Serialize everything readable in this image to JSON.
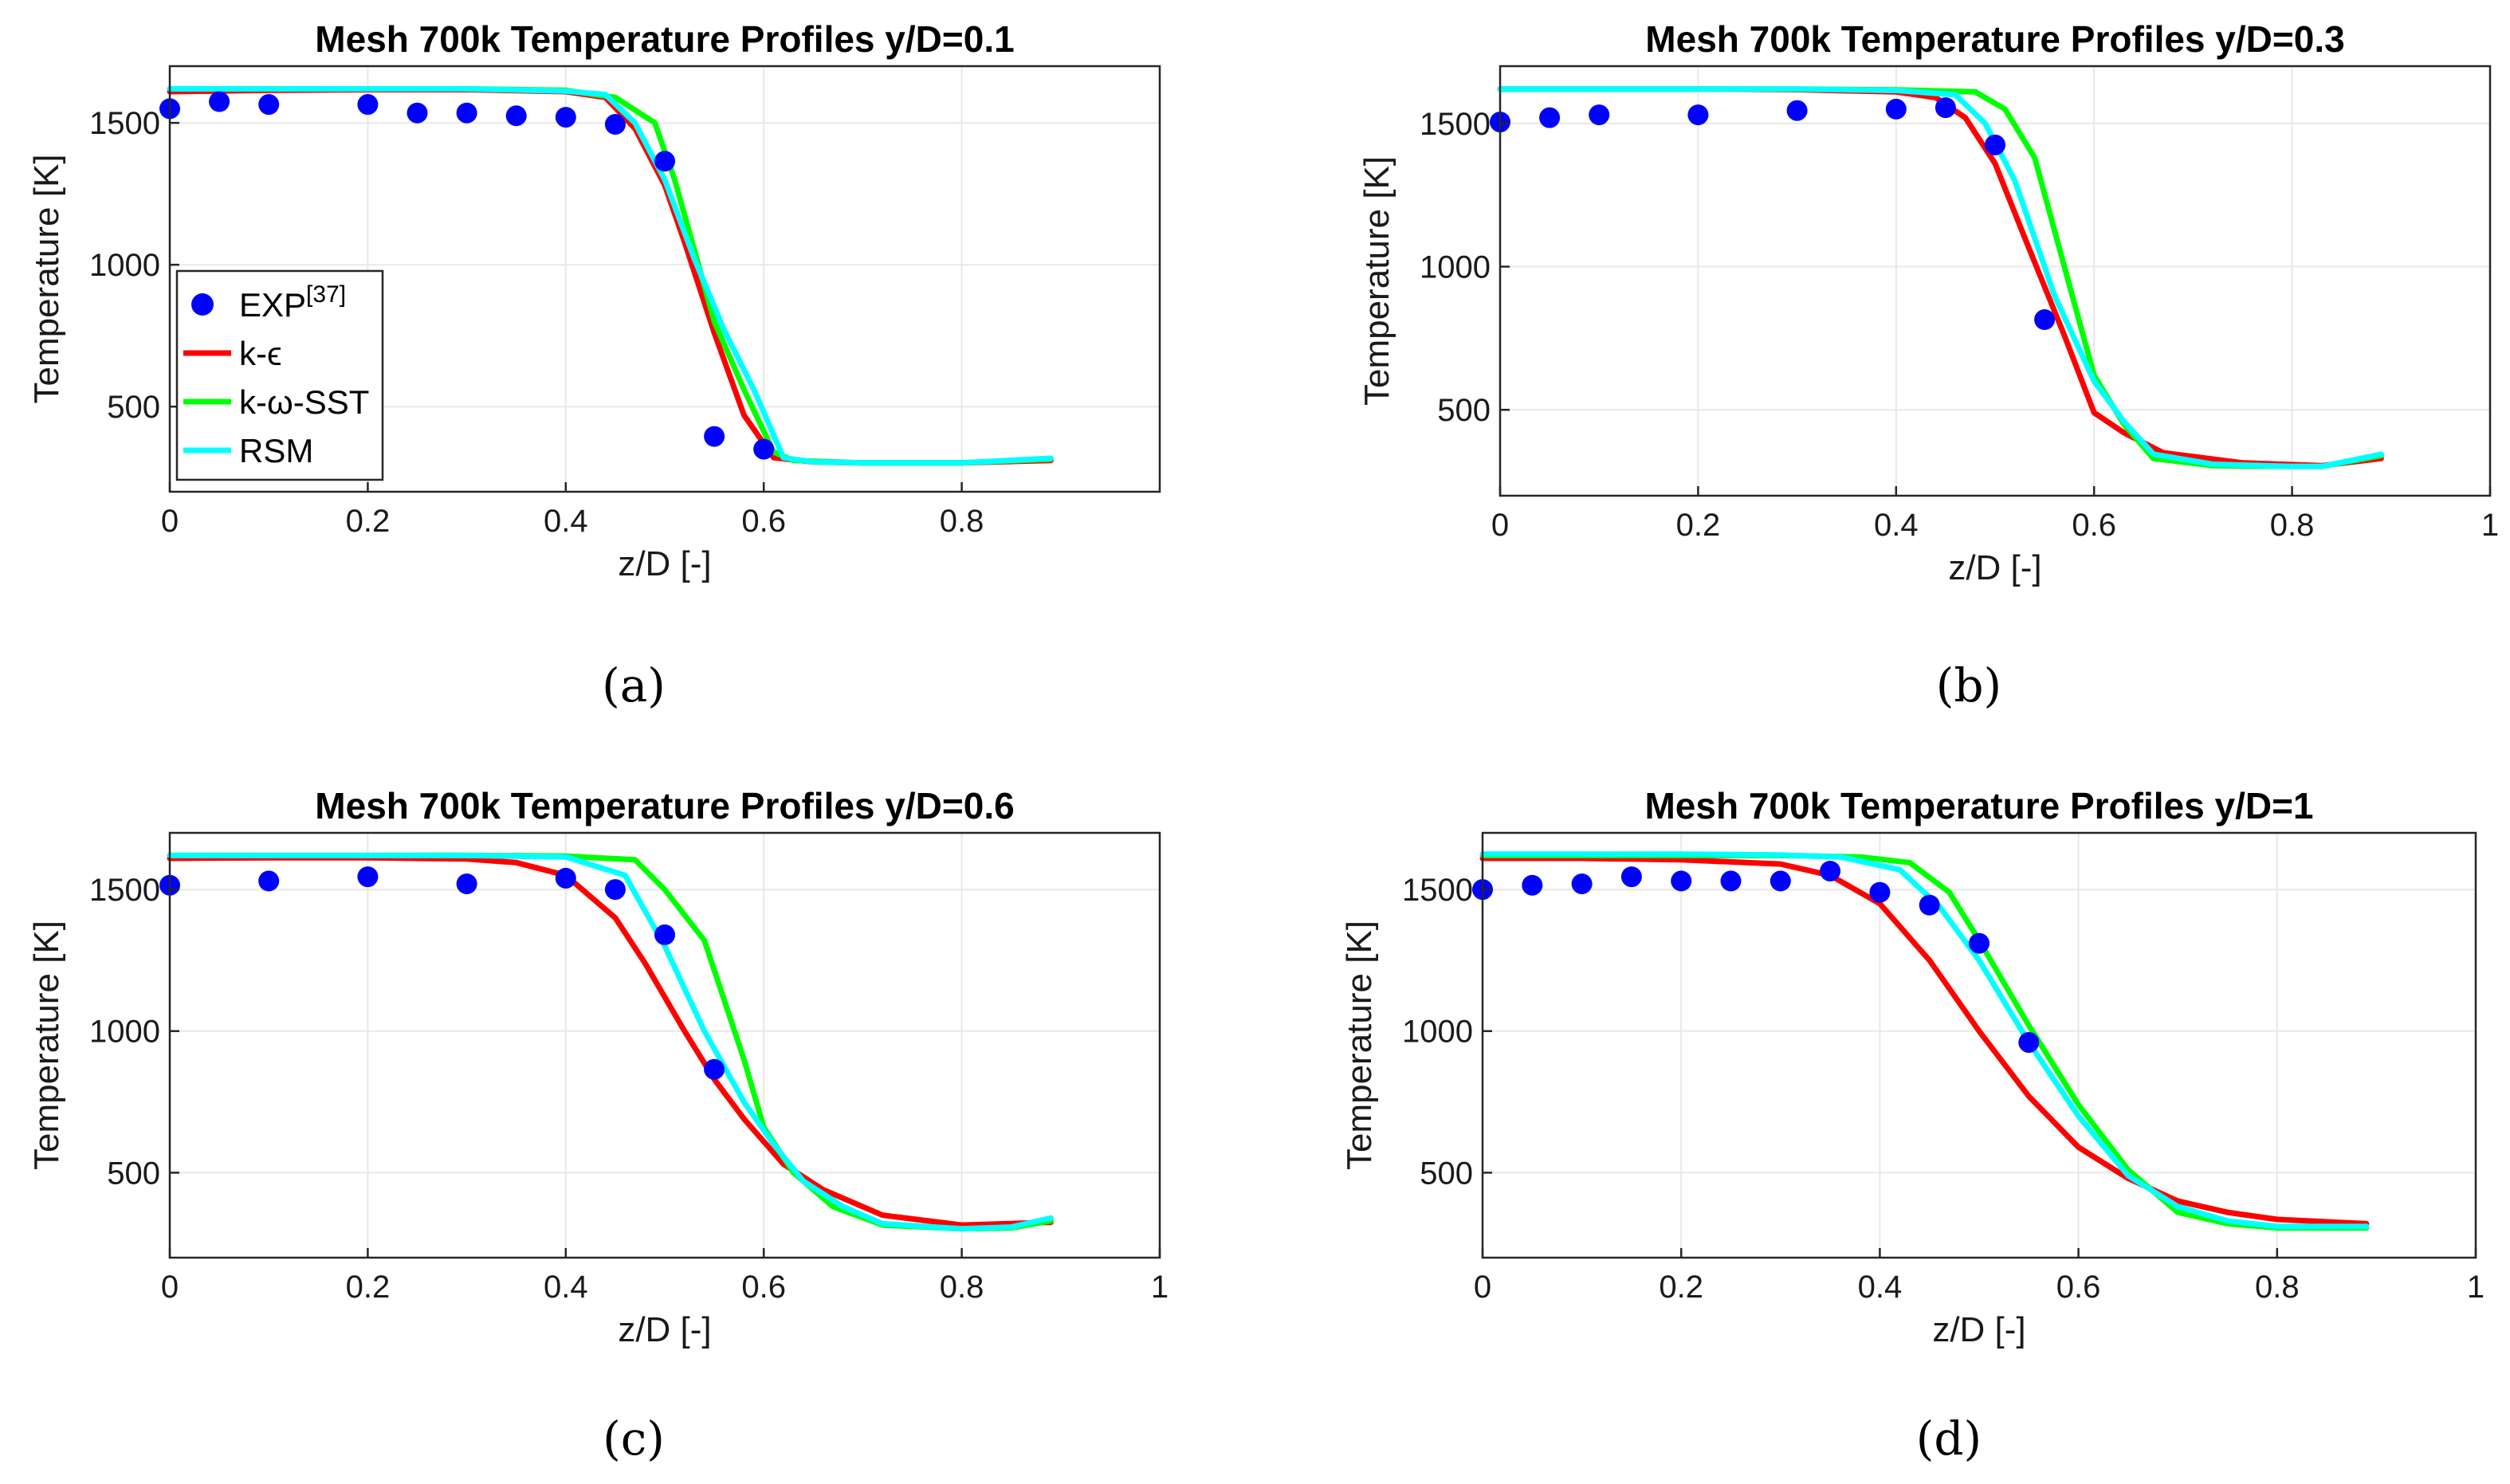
{
  "chart_data": [
    {
      "type": "line",
      "title": "Mesh 700k Temperature Profiles y/D=0.1",
      "caption": "(a)",
      "xlabel": "z/D [-]",
      "ylabel": "Temperature [K]",
      "xlim": [
        0,
        1
      ],
      "ylim": [
        200,
        1700
      ],
      "xticks": [
        0,
        0.2,
        0.4,
        0.6,
        0.8
      ],
      "xtick_labels": [
        "0",
        "0.2",
        "0.4",
        "0.6",
        "0.8"
      ],
      "yticks": [
        500,
        1000,
        1500
      ],
      "ytick_labels": [
        "500",
        "1000",
        "1500"
      ],
      "legend": {
        "placement": "center-left",
        "entries": [
          {
            "label": "EXP",
            "superscript": "[37]",
            "type": "marker",
            "color": "#0000ff"
          },
          {
            "label": "k-ϵ",
            "type": "line",
            "color": "#ff0000"
          },
          {
            "label": "k-ω-SST",
            "type": "line",
            "color": "#00ff00"
          },
          {
            "label": "RSM",
            "type": "line",
            "color": "#00ffff"
          }
        ]
      },
      "scatter": {
        "name": "EXP",
        "color": "#0000ff",
        "x": [
          0,
          0.05,
          0.1,
          0.2,
          0.25,
          0.3,
          0.35,
          0.4,
          0.45,
          0.5,
          0.55,
          0.6
        ],
        "y": [
          1550,
          1575,
          1565,
          1565,
          1535,
          1535,
          1525,
          1520,
          1495,
          1365,
          395,
          350
        ]
      },
      "series": [
        {
          "name": "k-ϵ",
          "color": "#ff0000",
          "x": [
            0,
            0.1,
            0.2,
            0.3,
            0.4,
            0.44,
            0.47,
            0.5,
            0.52,
            0.55,
            0.58,
            0.61,
            0.65,
            0.7,
            0.8,
            0.89
          ],
          "y": [
            1610,
            1615,
            1617,
            1617,
            1610,
            1590,
            1480,
            1280,
            1080,
            760,
            470,
            320,
            305,
            302,
            302,
            310
          ]
        },
        {
          "name": "k-ω-SST",
          "color": "#00ff00",
          "x": [
            0,
            0.1,
            0.2,
            0.3,
            0.4,
            0.45,
            0.49,
            0.51,
            0.53,
            0.55,
            0.58,
            0.61,
            0.63,
            0.7,
            0.8,
            0.89
          ],
          "y": [
            1620,
            1620,
            1620,
            1620,
            1615,
            1590,
            1500,
            1300,
            1050,
            800,
            560,
            340,
            310,
            302,
            302,
            315
          ]
        },
        {
          "name": "RSM",
          "color": "#00ffff",
          "x": [
            0,
            0.1,
            0.2,
            0.3,
            0.4,
            0.44,
            0.47,
            0.5,
            0.53,
            0.56,
            0.59,
            0.62,
            0.65,
            0.7,
            0.8,
            0.89
          ],
          "y": [
            1620,
            1620,
            1620,
            1620,
            1612,
            1600,
            1500,
            1300,
            1020,
            770,
            560,
            320,
            305,
            302,
            302,
            318
          ]
        }
      ]
    },
    {
      "type": "line",
      "title": "Mesh 700k Temperature Profiles y/D=0.3",
      "caption": "(b)",
      "xlabel": "z/D [-]",
      "ylabel": "Temperature [K]",
      "xlim": [
        0,
        1
      ],
      "ylim": [
        200,
        1700
      ],
      "xticks": [
        0,
        0.2,
        0.4,
        0.6,
        0.8,
        1
      ],
      "xtick_labels": [
        "0",
        "0.2",
        "0.4",
        "0.6",
        "0.8",
        "1"
      ],
      "yticks": [
        500,
        1000,
        1500
      ],
      "ytick_labels": [
        "500",
        "1000",
        "1500"
      ],
      "scatter": {
        "name": "EXP",
        "color": "#0000ff",
        "x": [
          0,
          0.05,
          0.1,
          0.2,
          0.3,
          0.4,
          0.45,
          0.5,
          0.55
        ],
        "y": [
          1505,
          1520,
          1530,
          1530,
          1545,
          1550,
          1555,
          1425,
          815
        ]
      },
      "series": [
        {
          "name": "k-ϵ",
          "color": "#ff0000",
          "x": [
            0,
            0.1,
            0.2,
            0.3,
            0.4,
            0.44,
            0.47,
            0.5,
            0.53,
            0.57,
            0.6,
            0.63,
            0.67,
            0.75,
            0.83,
            0.89
          ],
          "y": [
            1620,
            1620,
            1620,
            1618,
            1610,
            1590,
            1520,
            1360,
            1100,
            760,
            490,
            420,
            350,
            315,
            305,
            330
          ]
        },
        {
          "name": "k-ω-SST",
          "color": "#00ff00",
          "x": [
            0,
            0.1,
            0.2,
            0.3,
            0.4,
            0.48,
            0.51,
            0.54,
            0.57,
            0.6,
            0.63,
            0.66,
            0.72,
            0.8,
            0.83,
            0.89
          ],
          "y": [
            1620,
            1620,
            1620,
            1620,
            1617,
            1610,
            1550,
            1380,
            1000,
            620,
            450,
            330,
            305,
            302,
            302,
            340
          ]
        },
        {
          "name": "RSM",
          "color": "#00ffff",
          "x": [
            0,
            0.1,
            0.2,
            0.3,
            0.4,
            0.46,
            0.49,
            0.52,
            0.56,
            0.6,
            0.63,
            0.66,
            0.72,
            0.8,
            0.83,
            0.89
          ],
          "y": [
            1620,
            1620,
            1620,
            1620,
            1615,
            1600,
            1500,
            1300,
            900,
            600,
            460,
            345,
            310,
            302,
            302,
            345
          ]
        }
      ]
    },
    {
      "type": "line",
      "title": "Mesh 700k Temperature Profiles y/D=0.6",
      "caption": "(c)",
      "xlabel": "z/D [-]",
      "ylabel": "Temperature [K]",
      "xlim": [
        0,
        1
      ],
      "ylim": [
        200,
        1700
      ],
      "xticks": [
        0,
        0.2,
        0.4,
        0.6,
        0.8,
        1
      ],
      "xtick_labels": [
        "0",
        "0.2",
        "0.4",
        "0.6",
        "0.8",
        "1"
      ],
      "yticks": [
        500,
        1000,
        1500
      ],
      "ytick_labels": [
        "500",
        "1000",
        "1500"
      ],
      "scatter": {
        "name": "EXP",
        "color": "#0000ff",
        "x": [
          0,
          0.1,
          0.2,
          0.3,
          0.4,
          0.45,
          0.5,
          0.55
        ],
        "y": [
          1515,
          1530,
          1545,
          1520,
          1540,
          1500,
          1340,
          865
        ]
      },
      "series": [
        {
          "name": "k-ϵ",
          "color": "#ff0000",
          "x": [
            0,
            0.1,
            0.2,
            0.3,
            0.35,
            0.4,
            0.45,
            0.48,
            0.52,
            0.55,
            0.58,
            0.62,
            0.66,
            0.72,
            0.8,
            0.89
          ],
          "y": [
            1610,
            1612,
            1612,
            1608,
            1595,
            1550,
            1400,
            1240,
            1000,
            830,
            690,
            530,
            440,
            350,
            315,
            325
          ]
        },
        {
          "name": "k-ω-SST",
          "color": "#00ff00",
          "x": [
            0,
            0.1,
            0.2,
            0.3,
            0.4,
            0.47,
            0.5,
            0.54,
            0.58,
            0.6,
            0.63,
            0.67,
            0.72,
            0.8,
            0.85,
            0.89
          ],
          "y": [
            1620,
            1620,
            1620,
            1620,
            1618,
            1605,
            1500,
            1320,
            900,
            660,
            500,
            380,
            315,
            302,
            305,
            330
          ]
        },
        {
          "name": "RSM",
          "color": "#00ffff",
          "x": [
            0,
            0.1,
            0.2,
            0.3,
            0.4,
            0.46,
            0.5,
            0.54,
            0.58,
            0.61,
            0.64,
            0.68,
            0.72,
            0.8,
            0.85,
            0.89
          ],
          "y": [
            1620,
            1620,
            1620,
            1620,
            1615,
            1550,
            1300,
            1000,
            750,
            600,
            470,
            380,
            320,
            302,
            308,
            340
          ]
        }
      ]
    },
    {
      "type": "line",
      "title": "Mesh 700k Temperature Profiles y/D=1",
      "caption": "(d)",
      "xlabel": "z/D [-]",
      "ylabel": "Temperature [K]",
      "xlim": [
        0,
        1
      ],
      "ylim": [
        200,
        1700
      ],
      "xticks": [
        0,
        0.2,
        0.4,
        0.6,
        0.8,
        1
      ],
      "xtick_labels": [
        "0",
        "0.2",
        "0.4",
        "0.6",
        "0.8",
        "1"
      ],
      "yticks": [
        500,
        1000,
        1500
      ],
      "ytick_labels": [
        "500",
        "1000",
        "1500"
      ],
      "scatter": {
        "name": "EXP",
        "color": "#0000ff",
        "x": [
          0,
          0.05,
          0.1,
          0.15,
          0.2,
          0.25,
          0.3,
          0.35,
          0.4,
          0.45,
          0.5,
          0.55
        ],
        "y": [
          1500,
          1515,
          1520,
          1545,
          1530,
          1530,
          1530,
          1565,
          1490,
          1445,
          1310,
          960
        ]
      },
      "series": [
        {
          "name": "k-ϵ",
          "color": "#ff0000",
          "x": [
            0,
            0.1,
            0.2,
            0.3,
            0.35,
            0.4,
            0.45,
            0.5,
            0.55,
            0.6,
            0.65,
            0.7,
            0.75,
            0.8,
            0.89
          ],
          "y": [
            1610,
            1610,
            1605,
            1590,
            1550,
            1450,
            1250,
            1000,
            770,
            590,
            480,
            400,
            360,
            335,
            320
          ]
        },
        {
          "name": "k-ω-SST",
          "color": "#00ff00",
          "x": [
            0,
            0.1,
            0.2,
            0.3,
            0.38,
            0.43,
            0.47,
            0.5,
            0.55,
            0.6,
            0.65,
            0.7,
            0.75,
            0.8,
            0.89
          ],
          "y": [
            1620,
            1620,
            1620,
            1620,
            1615,
            1595,
            1490,
            1320,
            1020,
            740,
            510,
            360,
            320,
            305,
            305
          ]
        },
        {
          "name": "RSM",
          "color": "#00ffff",
          "x": [
            0,
            0.1,
            0.2,
            0.3,
            0.36,
            0.42,
            0.46,
            0.5,
            0.55,
            0.6,
            0.65,
            0.7,
            0.75,
            0.8,
            0.89
          ],
          "y": [
            1625,
            1625,
            1625,
            1622,
            1615,
            1570,
            1440,
            1250,
            960,
            700,
            490,
            380,
            330,
            310,
            310
          ]
        }
      ]
    }
  ]
}
